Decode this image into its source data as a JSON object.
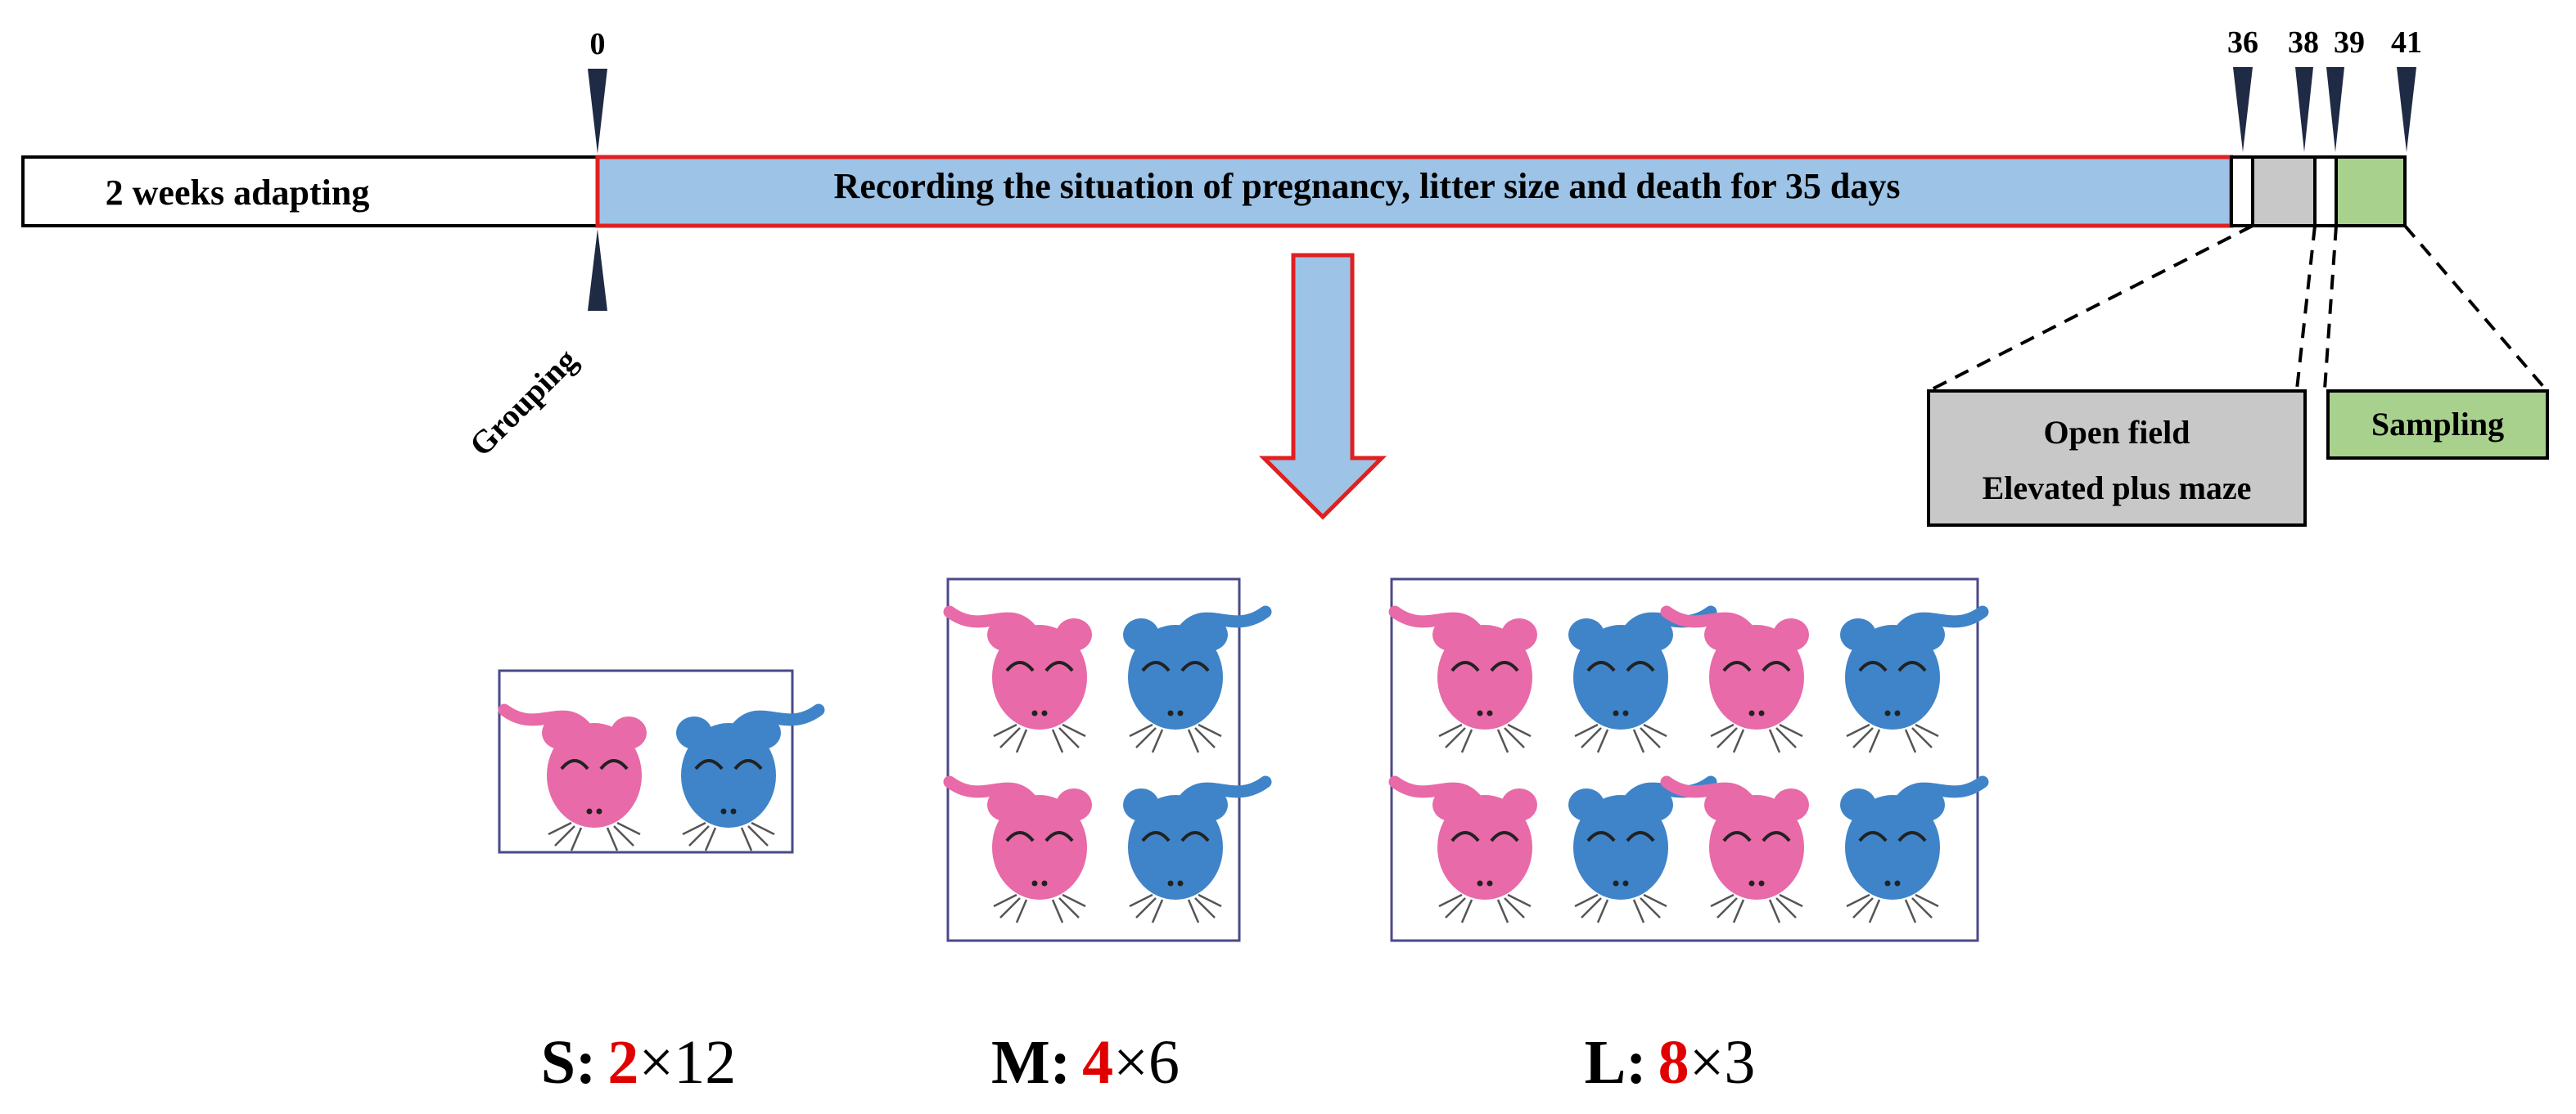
{
  "timeline": {
    "adapting_label": "2 weeks adapting",
    "recording_label": "Recording the situation of pregnancy, litter size and death for 35 days",
    "grouping_label": "Grouping",
    "day_markers": [
      "0",
      "36",
      "38",
      "39",
      "41"
    ]
  },
  "tests": {
    "behavior_line1": "Open field",
    "behavior_line2": "Elevated plus maze",
    "sampling_label": "Sampling"
  },
  "groups": [
    {
      "letter": "S:",
      "mice_per_cage": "2",
      "times": "×12"
    },
    {
      "letter": "M:",
      "mice_per_cage": "4",
      "times": "×6"
    },
    {
      "letter": "L:",
      "mice_per_cage": "8",
      "times": "×3"
    }
  ],
  "colors": {
    "recording_fill": "#9dc3e6",
    "recording_border": "#e02020",
    "behavior_fill": "#c8c8c8",
    "sampling_fill": "#a9d18e",
    "female_mouse": "#e86aa8",
    "male_mouse": "#3f84c8",
    "cage_border": "#4a4a8a",
    "highlight_number": "#e00000"
  }
}
